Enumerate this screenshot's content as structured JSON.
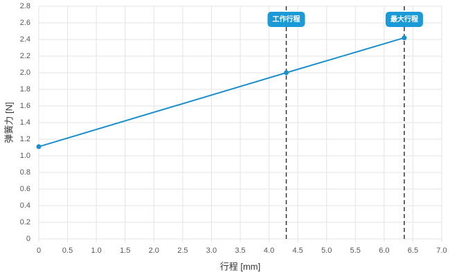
{
  "chart_data": {
    "type": "line",
    "x_label": "行程 [mm]",
    "y_label": "弹簧力 [N]",
    "x": [
      0,
      4.3,
      6.35
    ],
    "series": [
      {
        "color": "#1a8fcc",
        "values": [
          1.11,
          2.0,
          2.42
        ]
      }
    ],
    "xlim": [
      0,
      7
    ],
    "xticks": [
      0,
      0.5,
      {
        "value": 1,
        "label": "1.0"
      },
      1.5,
      {
        "value": 2,
        "label": "2.0"
      },
      2.5,
      {
        "value": 3,
        "label": "3.0"
      },
      3.5,
      {
        "value": 4,
        "label": "4.0"
      },
      4.5,
      {
        "value": 5,
        "label": "5.0"
      },
      5.5,
      {
        "value": 6,
        "label": "6.0"
      },
      6.5,
      {
        "value": 7,
        "label": "7.0"
      }
    ],
    "ylim": [
      0,
      2.8
    ],
    "yticks": [
      0,
      0.2,
      0.4,
      0.6,
      0.8,
      {
        "value": 1,
        "label": "1.0"
      },
      1.2,
      1.4,
      1.6,
      1.8,
      {
        "value": 2,
        "label": "2.0"
      },
      2.2,
      2.4,
      2.6,
      2.8
    ],
    "grid": true,
    "annotations": [
      {
        "x": 4.3,
        "label": "工作行程",
        "color": "#1a9ad6"
      },
      {
        "x": 6.35,
        "label": "最大行程",
        "color": "#1a9ad6"
      }
    ]
  }
}
